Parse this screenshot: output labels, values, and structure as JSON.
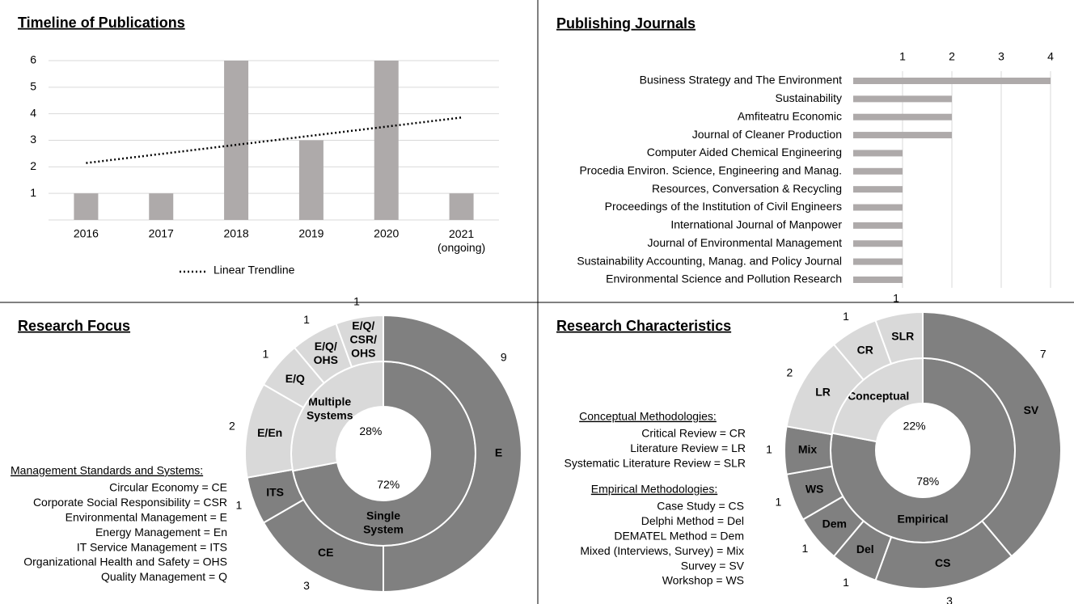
{
  "chart_data": [
    {
      "type": "bar",
      "title": "Timeline of Publications",
      "categories": [
        "2016",
        "2017",
        "2018",
        "2019",
        "2020",
        "2021\n(ongoing)"
      ],
      "values": [
        1,
        1,
        6,
        3,
        6,
        1
      ],
      "color": "#aeaaaa",
      "ylim": [
        0,
        6
      ],
      "yticks": [
        1,
        2,
        3,
        4,
        5,
        6
      ],
      "grid": true,
      "trendline": "linear",
      "trendline_label": "Linear Trendline",
      "trendline_color": "#000000"
    },
    {
      "type": "hbar",
      "title": "Publishing Journals",
      "categories": [
        "Business Strategy and The Environment",
        "Sustainability",
        "Amfiteatru Economic",
        "Journal of Cleaner Production",
        "Computer Aided Chemical Engineering",
        "Procedia Environ. Science, Engineering and Manag.",
        "Resources, Conversation & Recycling",
        "Proceedings of the Institution of Civil Engineers",
        "International Journal of Manpower",
        "Journal of Environmental Management",
        "Sustainability Accounting, Manag. and Policy Journal",
        "Environmental Science and Pollution Research"
      ],
      "values": [
        4,
        2,
        2,
        2,
        1,
        1,
        1,
        1,
        1,
        1,
        1,
        1
      ],
      "color": "#aeaaaa",
      "xlim": [
        0,
        4
      ],
      "xticks": [
        1,
        2,
        3,
        4
      ],
      "grid": true
    },
    {
      "type": "donut",
      "title": "Research Focus",
      "groups": [
        {
          "name": "Single\nSystem",
          "value": 72,
          "value_label": "72%",
          "color": "#808080",
          "segments": {
            "labels": [
              "E",
              "CE",
              "ITS"
            ],
            "values": [
              9,
              3,
              1
            ]
          }
        },
        {
          "name": "Multiple\nSystems",
          "value": 28,
          "value_label": "28%",
          "color": "#d9d9d9",
          "segments": {
            "labels": [
              "E/En",
              "E/Q",
              "E/Q/\nOHS",
              "E/Q/\nCSR/\nOHS"
            ],
            "values": [
              2,
              1,
              1,
              1
            ]
          }
        }
      ],
      "legend_sections": [
        {
          "title": "Management Standards and Systems:",
          "items": [
            "Circular Economy = CE",
            "Corporate Social Responsibility = CSR",
            "Environmental Management = E",
            "Energy Management = En",
            "IT Service Management = ITS",
            "Organizational Health and Safety = OHS",
            "Quality Management = Q"
          ]
        }
      ]
    },
    {
      "type": "donut",
      "title": "Research Characteristics",
      "groups": [
        {
          "name": "Empirical",
          "value": 78,
          "value_label": "78%",
          "color": "#808080",
          "segments": {
            "labels": [
              "SV",
              "CS",
              "Del",
              "Dem",
              "WS",
              "Mix"
            ],
            "values": [
              7,
              3,
              1,
              1,
              1,
              1
            ]
          }
        },
        {
          "name": "Conceptual",
          "value": 22,
          "value_label": "22%",
          "color": "#d9d9d9",
          "segments": {
            "labels": [
              "LR",
              "CR",
              "SLR"
            ],
            "values": [
              2,
              1,
              1
            ]
          }
        }
      ],
      "legend_sections": [
        {
          "title": "Conceptual Methodologies:",
          "items": [
            "Critical Review = CR",
            "Literature Review = LR",
            "Systematic Literature Review = SLR"
          ]
        },
        {
          "title": "Empirical Methodologies:",
          "items": [
            "Case Study = CS",
            "Delphi Method = Del",
            "DEMATEL Method = Dem",
            "Mixed (Interviews, Survey) = Mix",
            "Survey = SV",
            "Workshop = WS"
          ]
        }
      ]
    }
  ]
}
